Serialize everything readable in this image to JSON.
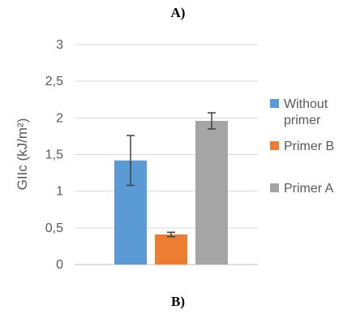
{
  "panel_labels": {
    "top": "A)",
    "bottom": "B)"
  },
  "chart_data": {
    "type": "bar",
    "title": "",
    "xlabel": "",
    "ylabel": "GIIc (kJ/m²)",
    "ylim": [
      0,
      3
    ],
    "yticks": [
      0,
      0.5,
      1,
      1.5,
      2,
      2.5,
      3
    ],
    "ytick_labels": [
      "0",
      "0,5",
      "1",
      "1,5",
      "2",
      "2,5",
      "3"
    ],
    "grid": true,
    "legend_position": "right",
    "series": [
      {
        "name": "Without primer",
        "legend_lines": [
          "Without",
          "primer"
        ],
        "values": [
          1.42
        ],
        "error": [
          0.34
        ],
        "color": "#5b9bd5"
      },
      {
        "name": "Primer B",
        "legend_lines": [
          "Primer B"
        ],
        "values": [
          0.41
        ],
        "error": [
          0.03
        ],
        "color": "#ed7d31"
      },
      {
        "name": "Primer A",
        "legend_lines": [
          "Primer A"
        ],
        "values": [
          1.96
        ],
        "error": [
          0.11
        ],
        "color": "#a5a5a5"
      }
    ]
  }
}
